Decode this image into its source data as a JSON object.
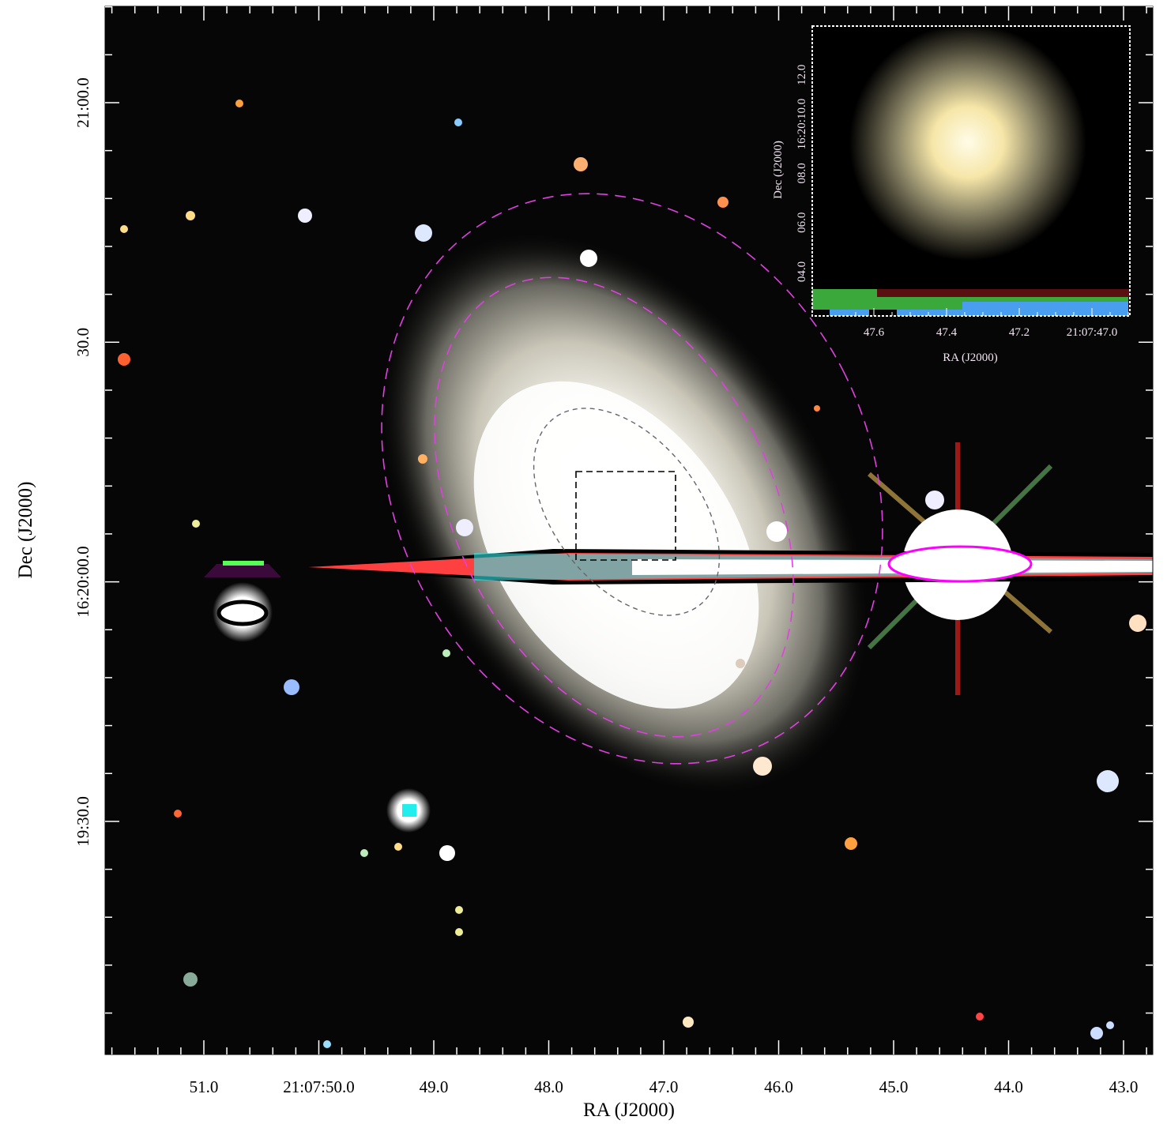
{
  "main": {
    "xlabel": "RA (J2000)",
    "ylabel": "Dec (J2000)",
    "xticks": [
      "51.0",
      "21:07:50.0",
      "49.0",
      "48.0",
      "47.0",
      "46.0",
      "45.0",
      "44.0",
      "43.0"
    ],
    "yticks": [
      "21:00.0",
      "30.0",
      "16:20:00.0",
      "19:30.0"
    ]
  },
  "inset": {
    "xlabel": "RA (J2000)",
    "ylabel": "Dec (J2000)",
    "xticks": [
      "47.6",
      "47.4",
      "47.2",
      "21:07:47.0"
    ],
    "yticks": [
      "04.0",
      "06.0",
      "08.0",
      "16:20:10.0",
      "12.0"
    ]
  }
}
